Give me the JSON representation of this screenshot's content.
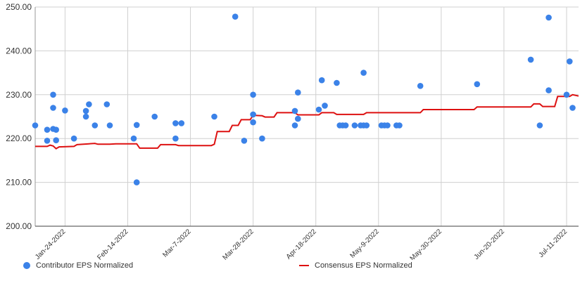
{
  "chart_data": {
    "type": "scatter",
    "title": "",
    "xlabel": "",
    "ylabel": "",
    "ylim": [
      200,
      250
    ],
    "xlim": [
      "2022-01-14",
      "2022-07-15"
    ],
    "y_ticks": [
      "200.00",
      "210.00",
      "220.00",
      "230.00",
      "240.00",
      "250.00"
    ],
    "x_ticks": [
      {
        "label": "Jan-24-2022",
        "date": "2022-01-24"
      },
      {
        "label": "Feb-14-2022",
        "date": "2022-02-14"
      },
      {
        "label": "Mar-7-2022",
        "date": "2022-03-07"
      },
      {
        "label": "Mar-28-2022",
        "date": "2022-03-28"
      },
      {
        "label": "Apr-18-2022",
        "date": "2022-04-18"
      },
      {
        "label": "May-9-2022",
        "date": "2022-05-09"
      },
      {
        "label": "May-30-2022",
        "date": "2022-05-30"
      },
      {
        "label": "Jun-20-2022",
        "date": "2022-06-20"
      },
      {
        "label": "Jul-11-2022",
        "date": "2022-07-11"
      }
    ],
    "grid": true,
    "legend_position": "bottom",
    "series": [
      {
        "name": "Contributor EPS Normalized",
        "kind": "scatter",
        "color": "#3b82e8",
        "points": [
          [
            "2022-01-14",
            223.0
          ],
          [
            "2022-01-18",
            222.0
          ],
          [
            "2022-01-18",
            219.5
          ],
          [
            "2022-01-20",
            230.0
          ],
          [
            "2022-01-20",
            227.0
          ],
          [
            "2022-01-20",
            222.2
          ],
          [
            "2022-01-21",
            222.0
          ],
          [
            "2022-01-21",
            219.6
          ],
          [
            "2022-01-24",
            226.4
          ],
          [
            "2022-01-27",
            220.0
          ],
          [
            "2022-01-31",
            226.3
          ],
          [
            "2022-01-31",
            225.0
          ],
          [
            "2022-02-01",
            227.8
          ],
          [
            "2022-02-03",
            223.0
          ],
          [
            "2022-02-07",
            227.8
          ],
          [
            "2022-02-08",
            223.0
          ],
          [
            "2022-02-16",
            220.0
          ],
          [
            "2022-02-17",
            223.1
          ],
          [
            "2022-02-17",
            210.0
          ],
          [
            "2022-02-23",
            225.0
          ],
          [
            "2022-03-02",
            223.5
          ],
          [
            "2022-03-02",
            220.0
          ],
          [
            "2022-03-04",
            223.5
          ],
          [
            "2022-03-15",
            225.0
          ],
          [
            "2022-03-22",
            247.8
          ],
          [
            "2022-03-25",
            219.5
          ],
          [
            "2022-03-28",
            230.0
          ],
          [
            "2022-03-28",
            225.5
          ],
          [
            "2022-03-28",
            223.7
          ],
          [
            "2022-03-31",
            220.0
          ],
          [
            "2022-04-11",
            226.3
          ],
          [
            "2022-04-11",
            223.0
          ],
          [
            "2022-04-12",
            230.5
          ],
          [
            "2022-04-12",
            224.5
          ],
          [
            "2022-04-19",
            226.6
          ],
          [
            "2022-04-20",
            233.3
          ],
          [
            "2022-04-21",
            227.5
          ],
          [
            "2022-04-25",
            232.7
          ],
          [
            "2022-04-26",
            223.0
          ],
          [
            "2022-04-27",
            223.0
          ],
          [
            "2022-04-28",
            223.0
          ],
          [
            "2022-05-01",
            223.0
          ],
          [
            "2022-05-03",
            223.0
          ],
          [
            "2022-05-04",
            223.0
          ],
          [
            "2022-05-05",
            223.0
          ],
          [
            "2022-05-04",
            235.0
          ],
          [
            "2022-05-10",
            223.0
          ],
          [
            "2022-05-11",
            223.0
          ],
          [
            "2022-05-12",
            223.0
          ],
          [
            "2022-05-15",
            223.0
          ],
          [
            "2022-05-16",
            223.0
          ],
          [
            "2022-05-23",
            232.0
          ],
          [
            "2022-06-11",
            232.4
          ],
          [
            "2022-06-29",
            238.0
          ],
          [
            "2022-07-02",
            223.0
          ],
          [
            "2022-07-05",
            231.0
          ],
          [
            "2022-07-05",
            247.6
          ],
          [
            "2022-07-11",
            230.0
          ],
          [
            "2022-07-12",
            237.6
          ],
          [
            "2022-07-13",
            227.0
          ]
        ]
      },
      {
        "name": "Consensus EPS Normalized",
        "kind": "step-line",
        "color": "#dd1111",
        "points": [
          [
            "2022-01-14",
            218.2
          ],
          [
            "2022-01-18",
            218.2
          ],
          [
            "2022-01-19",
            218.5
          ],
          [
            "2022-01-20",
            218.3
          ],
          [
            "2022-01-21",
            217.7
          ],
          [
            "2022-01-22",
            218.1
          ],
          [
            "2022-01-27",
            218.2
          ],
          [
            "2022-01-28",
            218.6
          ],
          [
            "2022-02-01",
            218.8
          ],
          [
            "2022-02-03",
            218.9
          ],
          [
            "2022-02-04",
            218.7
          ],
          [
            "2022-02-08",
            218.7
          ],
          [
            "2022-02-10",
            218.8
          ],
          [
            "2022-02-17",
            218.8
          ],
          [
            "2022-02-18",
            217.8
          ],
          [
            "2022-02-24",
            217.8
          ],
          [
            "2022-02-25",
            218.6
          ],
          [
            "2022-03-02",
            218.6
          ],
          [
            "2022-03-03",
            218.4
          ],
          [
            "2022-03-14",
            218.4
          ],
          [
            "2022-03-15",
            218.7
          ],
          [
            "2022-03-16",
            221.6
          ],
          [
            "2022-03-20",
            221.6
          ],
          [
            "2022-03-21",
            223.0
          ],
          [
            "2022-03-23",
            223.0
          ],
          [
            "2022-03-24",
            224.3
          ],
          [
            "2022-03-27",
            224.3
          ],
          [
            "2022-03-28",
            225.3
          ],
          [
            "2022-03-31",
            225.2
          ],
          [
            "2022-04-01",
            224.9
          ],
          [
            "2022-04-04",
            224.9
          ],
          [
            "2022-04-05",
            225.9
          ],
          [
            "2022-04-11",
            225.9
          ],
          [
            "2022-04-12",
            225.4
          ],
          [
            "2022-04-19",
            225.4
          ],
          [
            "2022-04-20",
            225.9
          ],
          [
            "2022-04-24",
            225.9
          ],
          [
            "2022-04-25",
            225.5
          ],
          [
            "2022-05-04",
            225.5
          ],
          [
            "2022-05-05",
            225.9
          ],
          [
            "2022-05-23",
            225.9
          ],
          [
            "2022-05-24",
            226.6
          ],
          [
            "2022-06-10",
            226.6
          ],
          [
            "2022-06-11",
            227.2
          ],
          [
            "2022-06-29",
            227.2
          ],
          [
            "2022-06-30",
            227.9
          ],
          [
            "2022-07-02",
            227.9
          ],
          [
            "2022-07-03",
            227.3
          ],
          [
            "2022-07-07",
            227.3
          ],
          [
            "2022-07-08",
            229.6
          ],
          [
            "2022-07-12",
            229.6
          ],
          [
            "2022-07-13",
            230.0
          ],
          [
            "2022-07-15",
            229.7
          ]
        ]
      }
    ]
  }
}
